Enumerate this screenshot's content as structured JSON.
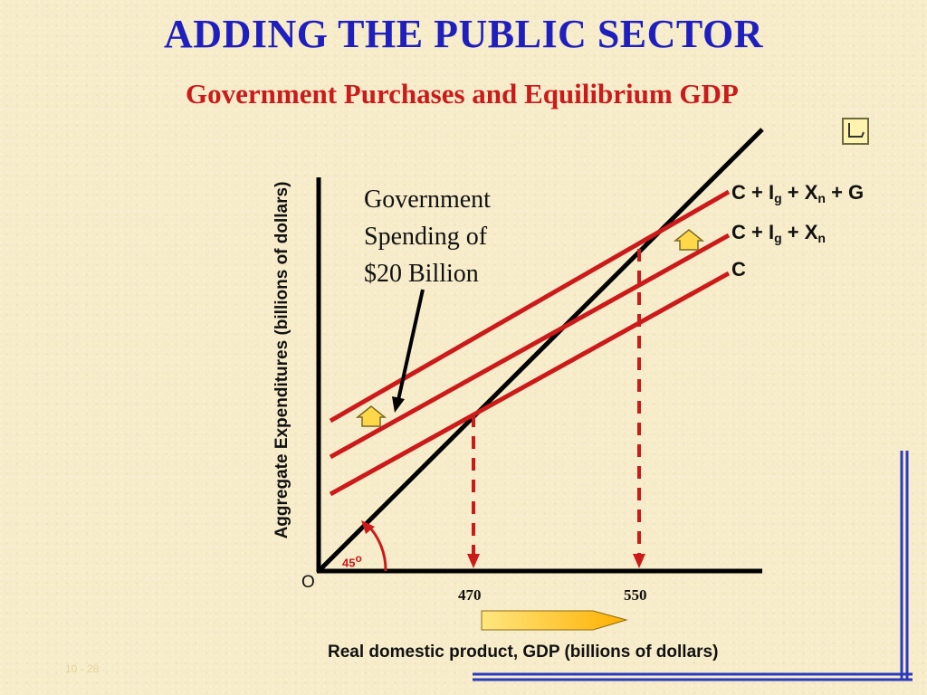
{
  "title": "ADDING THE PUBLIC SECTOR",
  "subtitle": "Government Purchases and Equilibrium GDP",
  "annotation": {
    "line1": "Government",
    "line2": "Spending of",
    "line3": "$20 Billion"
  },
  "y_axis_label": "Aggregate Expenditures (billions of dollars)",
  "x_axis_label": "Real domestic product, GDP (billions of dollars)",
  "origin_label": "O",
  "angle_label": "45",
  "angle_degree": "o",
  "curves": {
    "c_ig_xn_g": {
      "c": "C + I",
      "g_sub": "g",
      "x": " + X",
      "n_sub": "n",
      "tail": " + G"
    },
    "c_ig_xn": {
      "c": "C + I",
      "g_sub": "g",
      "x": " + X",
      "n_sub": "n"
    },
    "c": {
      "c": "C"
    }
  },
  "chart_data": {
    "type": "line",
    "xlabel": "Real domestic product, GDP (billions of dollars)",
    "ylabel": "Aggregate Expenditures (billions of dollars)",
    "x_ticks": [
      470,
      550
    ],
    "equilibria": [
      470,
      550
    ],
    "series": [
      {
        "name": "C + Ig + Xn + G"
      },
      {
        "name": "C + Ig + Xn"
      },
      {
        "name": "C"
      }
    ],
    "government_spending": 20
  },
  "slide_number": "10 - 28",
  "colors": {
    "title": "#1f1fbf",
    "subtitle": "#cc1a1a",
    "curve": "#cc1a1a",
    "axis": "#000000",
    "arrow_fill": "#ffd84a",
    "frame": "#2a3ac0"
  },
  "icons": {
    "back": "return-arrow-icon"
  }
}
